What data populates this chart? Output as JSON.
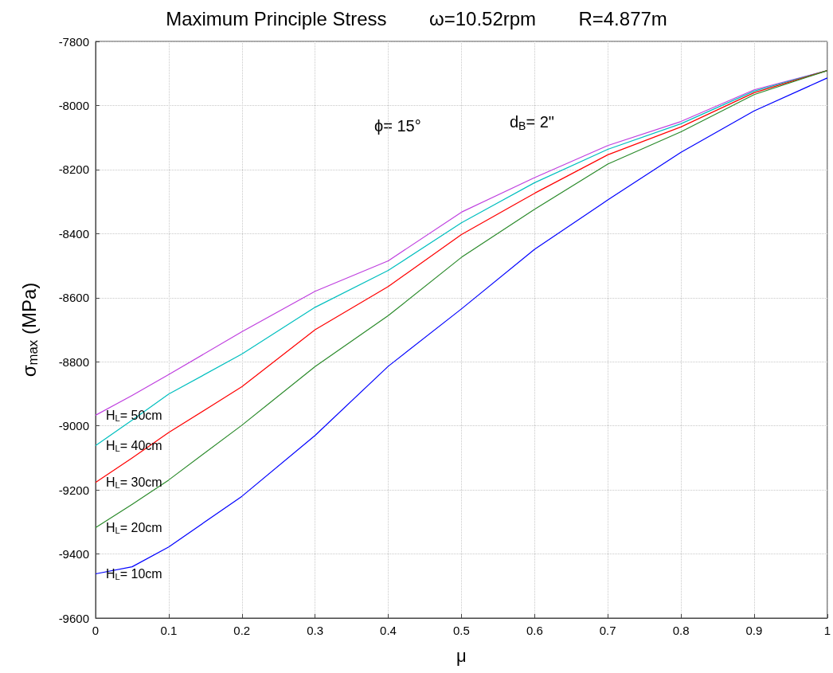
{
  "chart_data": {
    "type": "line",
    "title": "Maximum Principle Stress        ω=10.52rpm        R=4.877m",
    "xlabel": "μ",
    "ylabel": "σ$_{max}$ (MPa)",
    "annotations": [
      "ϕ= 15°",
      "d$_{B}$= 2\""
    ],
    "x": [
      0,
      0.05,
      0.1,
      0.2,
      0.3,
      0.4,
      0.5,
      0.6,
      0.7,
      0.8,
      0.9,
      1
    ],
    "series": [
      {
        "name": "H$_{L}$= 50cm",
        "color": "#bf3fdf",
        "values": [
          -8967,
          -8905,
          -8840,
          -8706,
          -8580,
          -8485,
          -8333,
          -8225,
          -8125,
          -8050,
          -7951,
          -7891
        ]
      },
      {
        "name": "H$_{L}$= 40cm",
        "color": "#00bfbf",
        "values": [
          -9062,
          -8982,
          -8901,
          -8776,
          -8630,
          -8515,
          -8366,
          -8241,
          -8137,
          -8057,
          -7955,
          -7891
        ]
      },
      {
        "name": "H$_{L}$= 30cm",
        "color": "#ff0000",
        "values": [
          -9177,
          -9100,
          -9021,
          -8878,
          -8700,
          -8565,
          -8403,
          -8274,
          -8154,
          -8067,
          -7960,
          -7891
        ]
      },
      {
        "name": "H$_{L}$= 20cm",
        "color": "#2a8a2a",
        "values": [
          -9318,
          -9245,
          -9169,
          -8998,
          -8815,
          -8656,
          -8474,
          -8324,
          -8183,
          -8082,
          -7966,
          -7891
        ]
      },
      {
        "name": "H$_{L}$= 10cm",
        "color": "#0000ff",
        "values": [
          -9462,
          -9440,
          -9378,
          -9220,
          -9030,
          -8814,
          -8635,
          -8449,
          -8295,
          -8146,
          -8017,
          -7914
        ]
      }
    ],
    "xlim": [
      0,
      1
    ],
    "xticks": [
      0,
      0.1,
      0.2,
      0.3,
      0.4,
      0.5,
      0.6,
      0.7,
      0.8,
      0.9,
      1
    ],
    "ylim": [
      -9600,
      -7800
    ],
    "yticks": [
      -9600,
      -9400,
      -9200,
      -9000,
      -8800,
      -8600,
      -8400,
      -8200,
      -8000,
      -7800
    ],
    "grid": true
  }
}
